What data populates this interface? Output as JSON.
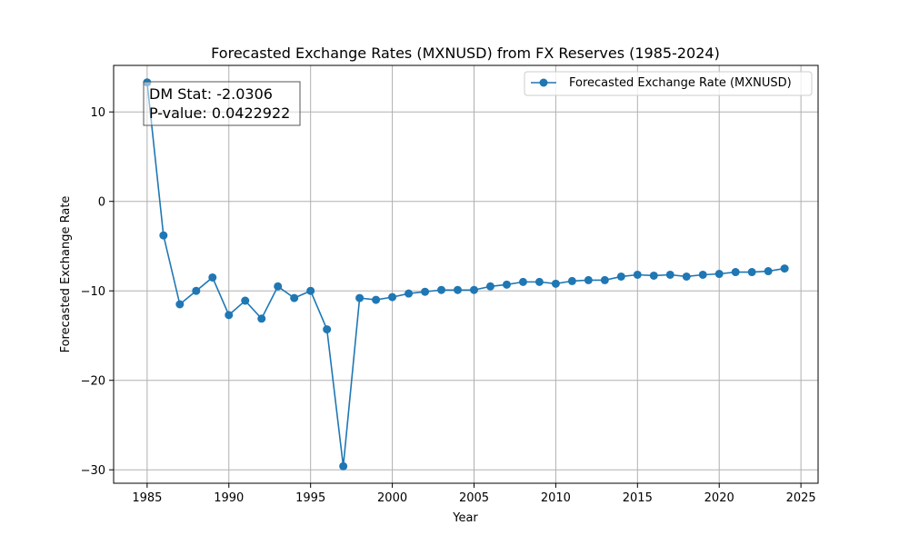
{
  "chart_data": {
    "type": "line",
    "title": "Forecasted Exchange Rates (MXNUSD) from FX Reserves (1985-2024)",
    "xlabel": "Year",
    "ylabel": "Forecasted Exchange Rate",
    "xlim": [
      1982.95,
      2026.05
    ],
    "ylim": [
      -31.5,
      15.2
    ],
    "xticks": [
      1985,
      1990,
      1995,
      2000,
      2005,
      2010,
      2015,
      2020,
      2025
    ],
    "xtick_labels": [
      "1985",
      "1990",
      "1995",
      "2000",
      "2005",
      "2010",
      "2015",
      "2020",
      "2025"
    ],
    "yticks": [
      -30,
      -20,
      -10,
      0,
      10
    ],
    "ytick_labels": [
      "−30",
      "−20",
      "−10",
      "0",
      "10"
    ],
    "grid": true,
    "legend": "top-right",
    "series": [
      {
        "name": "Forecasted Exchange Rate (MXNUSD)",
        "color": "#1f77b4",
        "marker": "circle",
        "x": [
          1985,
          1986,
          1987,
          1988,
          1989,
          1990,
          1991,
          1992,
          1993,
          1994,
          1995,
          1996,
          1997,
          1998,
          1999,
          2000,
          2001,
          2002,
          2003,
          2004,
          2005,
          2006,
          2007,
          2008,
          2009,
          2010,
          2011,
          2012,
          2013,
          2014,
          2015,
          2016,
          2017,
          2018,
          2019,
          2020,
          2021,
          2022,
          2023,
          2024
        ],
        "y": [
          13.3,
          -3.8,
          -11.5,
          -10.0,
          -8.5,
          -12.7,
          -11.1,
          -13.1,
          -9.5,
          -10.8,
          -10.0,
          -14.3,
          -29.6,
          -10.8,
          -11.0,
          -10.7,
          -10.3,
          -10.1,
          -9.9,
          -9.9,
          -9.9,
          -9.5,
          -9.3,
          -9.0,
          -9.0,
          -9.2,
          -8.9,
          -8.8,
          -8.8,
          -8.4,
          -8.2,
          -8.3,
          -8.2,
          -8.4,
          -8.2,
          -8.1,
          -7.9,
          -7.9,
          -7.8,
          -7.5
        ]
      }
    ],
    "annotations": [
      {
        "lines": [
          "DM Stat: -2.0306",
          "P-value: 0.0422922"
        ],
        "position": "top-left"
      }
    ]
  }
}
